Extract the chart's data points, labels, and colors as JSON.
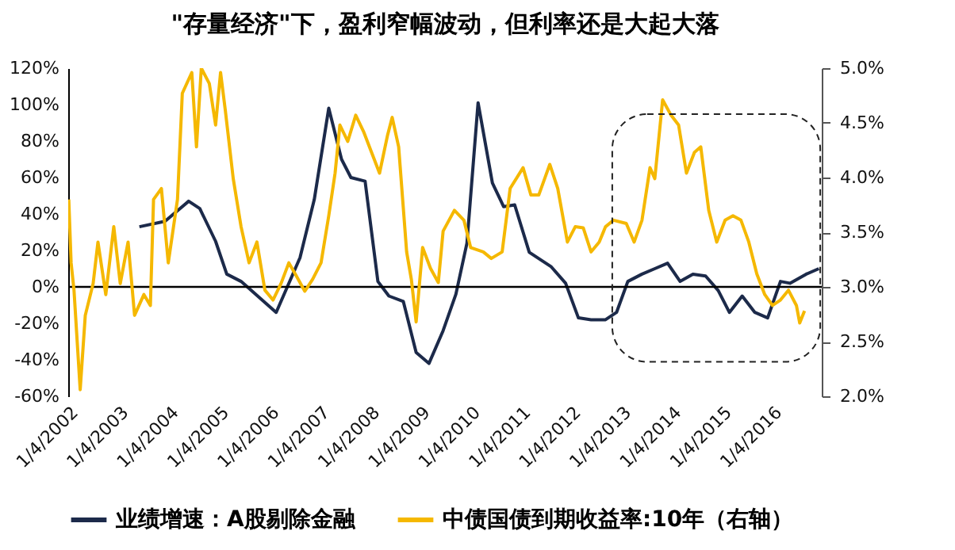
{
  "chart_data": {
    "type": "line",
    "title": "\"存量经济\"下，盈利窄幅波动，但利率还是大起大落",
    "xlim": [
      "2002-01-04",
      "2016-12-31"
    ],
    "xticks": [
      {
        "value": "2002-01-04",
        "label": "1/4/2002"
      },
      {
        "value": "2003-01-04",
        "label": "1/4/2003"
      },
      {
        "value": "2004-01-04",
        "label": "1/4/2004"
      },
      {
        "value": "2005-01-04",
        "label": "1/4/2005"
      },
      {
        "value": "2006-01-04",
        "label": "1/4/2006"
      },
      {
        "value": "2007-01-04",
        "label": "1/4/2007"
      },
      {
        "value": "2008-01-04",
        "label": "1/4/2008"
      },
      {
        "value": "2009-01-04",
        "label": "1/4/2009"
      },
      {
        "value": "2010-01-04",
        "label": "1/4/2010"
      },
      {
        "value": "2011-01-04",
        "label": "1/4/2011"
      },
      {
        "value": "2012-01-04",
        "label": "1/4/2012"
      },
      {
        "value": "2013-01-04",
        "label": "1/4/2013"
      },
      {
        "value": "2014-01-04",
        "label": "1/4/2014"
      },
      {
        "value": "2015-01-04",
        "label": "1/4/2015"
      },
      {
        "value": "2016-01-04",
        "label": "1/4/2016"
      }
    ],
    "ylim": [
      -60,
      120
    ],
    "yticks": [
      {
        "value": -60,
        "label": "-60%"
      },
      {
        "value": -40,
        "label": "-40%"
      },
      {
        "value": -20,
        "label": "-20%"
      },
      {
        "value": 0,
        "label": "0%"
      },
      {
        "value": 20,
        "label": "20%"
      },
      {
        "value": 40,
        "label": "40%"
      },
      {
        "value": 60,
        "label": "60%"
      },
      {
        "value": 80,
        "label": "80%"
      },
      {
        "value": 100,
        "label": "100%"
      },
      {
        "value": 120,
        "label": "120%"
      }
    ],
    "y2lim": [
      2.0,
      5.0
    ],
    "y2ticks": [
      {
        "value": 2.0,
        "label": "2.0%"
      },
      {
        "value": 2.5,
        "label": "2.5%"
      },
      {
        "value": 3.0,
        "label": "3.0%"
      },
      {
        "value": 3.5,
        "label": "3.5%"
      },
      {
        "value": 4.0,
        "label": "4.0%"
      },
      {
        "value": 4.5,
        "label": "4.5%"
      },
      {
        "value": 5.0,
        "label": "5.0%"
      }
    ],
    "grid": false,
    "legend": "bottom",
    "line_style": "solid",
    "marker": "none",
    "ref_lines": [
      {
        "axis": "y",
        "value": 0,
        "color": "#000000"
      }
    ],
    "series": [
      {
        "name": "业绩增速：A股剔除金融",
        "color": "#1c2a4a",
        "x": [
          "2003-06-05",
          "2003-12-08",
          "2004-05-28",
          "2004-08-17",
          "2004-12-10",
          "2005-03-01",
          "2005-06-13",
          "2006-02-23",
          "2006-08-15",
          "2006-11-27",
          "2007-03-12",
          "2007-06-13",
          "2007-08-20",
          "2007-12-01",
          "2008-03-03",
          "2008-05-22",
          "2008-09-04",
          "2008-12-06",
          "2009-03-09",
          "2009-06-20",
          "2009-09-21",
          "2009-12-10",
          "2010-03-01",
          "2010-06-13",
          "2010-09-03",
          "2010-11-22",
          "2011-03-08",
          "2011-08-15",
          "2011-11-27",
          "2012-02-28",
          "2012-05-30",
          "2012-09-12",
          "2012-12-01",
          "2013-02-21",
          "2013-06-04",
          "2013-09-05",
          "2013-12-07",
          "2014-03-08",
          "2014-06-09",
          "2014-09-09",
          "2014-12-10",
          "2015-03-01",
          "2015-06-02",
          "2015-09-02",
          "2015-12-04",
          "2016-03-06",
          "2016-05-14",
          "2016-09-09",
          "2016-12-10"
        ],
        "values": [
          33,
          36,
          47,
          43,
          25,
          7,
          3,
          -14,
          16,
          48,
          98,
          70,
          60,
          58,
          3,
          -5,
          -8,
          -36,
          -42,
          -24,
          -4,
          24,
          101,
          57,
          44,
          45,
          19,
          11,
          2,
          -17,
          -18,
          -18,
          -14,
          3,
          7,
          10,
          13,
          3,
          7,
          6,
          -2,
          -14,
          -5,
          -14,
          -17,
          3,
          2,
          7,
          10
        ]
      },
      {
        "name": "中债国债到期收益率:10年（右轴）",
        "color": "#f5b800",
        "axis": "y2",
        "x": [
          "2002-01-08",
          "2002-01-25",
          "2002-02-15",
          "2002-04-01",
          "2002-05-08",
          "2002-07-04",
          "2002-08-08",
          "2002-10-04",
          "2002-12-01",
          "2003-01-17",
          "2003-03-15",
          "2003-05-01",
          "2003-07-08",
          "2003-08-24",
          "2003-09-16",
          "2003-11-12",
          "2004-01-01",
          "2004-03-08",
          "2004-04-12",
          "2004-06-20",
          "2004-07-24",
          "2004-08-28",
          "2004-10-25",
          "2004-12-10",
          "2005-01-15",
          "2005-02-18",
          "2005-04-17",
          "2005-06-13",
          "2005-08-10",
          "2005-10-06",
          "2005-12-03",
          "2006-01-31",
          "2006-03-30",
          "2006-05-26",
          "2006-07-11",
          "2006-09-19",
          "2006-11-15",
          "2007-01-15",
          "2007-03-12",
          "2007-04-27",
          "2007-06-01",
          "2007-07-28",
          "2007-09-24",
          "2007-11-20",
          "2008-01-17",
          "2008-03-15",
          "2008-05-11",
          "2008-06-15",
          "2008-08-01",
          "2008-09-28",
          "2008-11-01",
          "2008-12-06",
          "2009-01-22",
          "2009-03-20",
          "2009-05-16",
          "2009-06-20",
          "2009-09-10",
          "2009-11-18",
          "2010-01-06",
          "2010-04-08",
          "2010-06-05",
          "2010-08-23",
          "2010-10-20",
          "2011-01-22",
          "2011-03-20",
          "2011-05-16",
          "2011-08-04",
          "2011-10-01",
          "2011-12-10",
          "2012-02-05",
          "2012-04-03",
          "2012-05-30",
          "2012-07-28",
          "2012-09-12",
          "2012-11-09",
          "2013-02-10",
          "2013-04-08",
          "2013-06-04",
          "2013-08-01",
          "2013-09-05",
          "2013-10-21",
          "2013-11-01",
          "2014-01-01",
          "2014-02-25",
          "2014-04-23",
          "2014-06-20",
          "2014-08-05",
          "2014-10-02",
          "2014-11-29",
          "2015-01-29",
          "2015-03-27",
          "2015-05-24",
          "2015-07-20",
          "2015-09-16",
          "2015-11-13",
          "2016-01-08",
          "2016-03-06",
          "2016-05-03",
          "2016-06-30",
          "2016-07-24",
          "2016-08-28"
        ],
        "values": [
          3.8,
          3.22,
          2.97,
          2.06,
          2.74,
          3.03,
          3.41,
          2.93,
          3.55,
          3.03,
          3.41,
          2.74,
          2.93,
          2.83,
          3.8,
          3.9,
          3.22,
          3.8,
          4.77,
          4.96,
          4.28,
          5.0,
          4.86,
          4.48,
          4.96,
          4.62,
          3.99,
          3.55,
          3.22,
          3.41,
          2.97,
          2.88,
          3.03,
          3.22,
          3.12,
          2.96,
          3.07,
          3.22,
          3.65,
          4.04,
          4.48,
          4.33,
          4.57,
          4.42,
          4.23,
          4.04,
          4.38,
          4.55,
          4.28,
          3.32,
          3.07,
          2.68,
          3.36,
          3.17,
          3.04,
          3.51,
          3.7,
          3.61,
          3.36,
          3.32,
          3.26,
          3.32,
          3.9,
          4.09,
          3.84,
          3.84,
          4.12,
          3.9,
          3.41,
          3.55,
          3.54,
          3.32,
          3.41,
          3.55,
          3.61,
          3.58,
          3.41,
          3.61,
          4.09,
          3.99,
          4.57,
          4.71,
          4.57,
          4.48,
          4.04,
          4.23,
          4.28,
          3.7,
          3.41,
          3.61,
          3.65,
          3.61,
          3.41,
          3.12,
          2.93,
          2.83,
          2.88,
          2.97,
          2.83,
          2.67,
          2.78
        ]
      }
    ]
  }
}
